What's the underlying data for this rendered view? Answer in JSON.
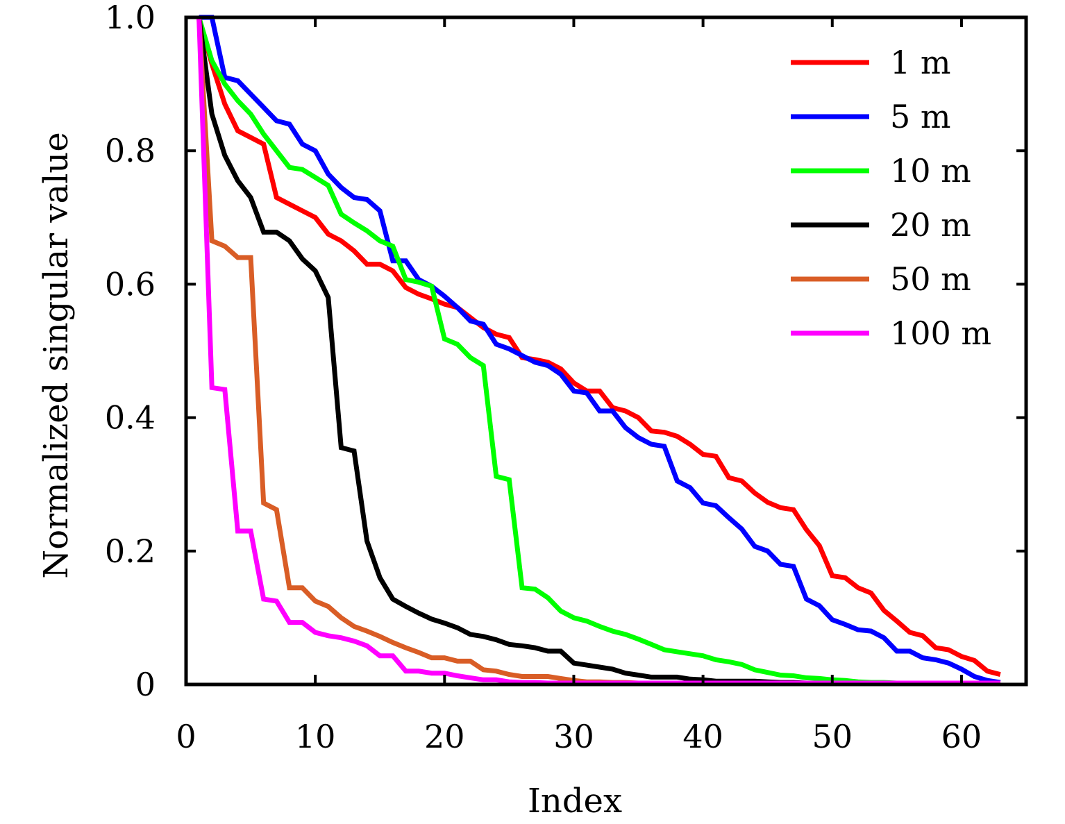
{
  "chart_data": {
    "type": "line",
    "title": "",
    "xlabel": "Index",
    "ylabel": "Normalized singular value",
    "xlim": [
      0,
      65
    ],
    "ylim": [
      0,
      1.0
    ],
    "xticks": [
      0,
      10,
      20,
      30,
      40,
      50,
      60
    ],
    "xtick_labels": [
      "0",
      "10",
      "20",
      "30",
      "40",
      "50",
      "60"
    ],
    "yticks": [
      0,
      0.2,
      0.4,
      0.6,
      0.8,
      1.0
    ],
    "ytick_labels": [
      "0",
      "0.2",
      "0.4",
      "0.6",
      "0.8",
      "1.0"
    ],
    "grid": false,
    "legend_position": "top-right",
    "x": [
      1,
      2,
      3,
      4,
      5,
      6,
      7,
      8,
      9,
      10,
      11,
      12,
      13,
      14,
      15,
      16,
      17,
      18,
      19,
      20,
      21,
      22,
      23,
      24,
      25,
      26,
      27,
      28,
      29,
      30,
      31,
      32,
      33,
      34,
      35,
      36,
      37,
      38,
      39,
      40,
      41,
      42,
      43,
      44,
      45,
      46,
      47,
      48,
      49,
      50,
      51,
      52,
      53,
      54,
      55,
      56,
      57,
      58,
      59,
      60,
      61,
      62,
      63
    ],
    "series": [
      {
        "name": "1 m",
        "color": "#ff0000",
        "values": [
          1.0,
          0.93,
          0.87,
          0.83,
          0.82,
          0.81,
          0.73,
          0.72,
          0.71,
          0.7,
          0.675,
          0.665,
          0.65,
          0.63,
          0.63,
          0.62,
          0.595,
          0.585,
          0.578,
          0.57,
          0.565,
          0.55,
          0.535,
          0.525,
          0.52,
          0.49,
          0.487,
          0.483,
          0.473,
          0.452,
          0.44,
          0.44,
          0.415,
          0.41,
          0.4,
          0.38,
          0.378,
          0.372,
          0.36,
          0.345,
          0.342,
          0.31,
          0.305,
          0.287,
          0.273,
          0.265,
          0.262,
          0.232,
          0.208,
          0.163,
          0.16,
          0.145,
          0.137,
          0.111,
          0.095,
          0.078,
          0.073,
          0.055,
          0.052,
          0.042,
          0.036,
          0.02,
          0.015
        ]
      },
      {
        "name": "5 m",
        "color": "#0000ff",
        "values": [
          1.0,
          1.0,
          0.91,
          0.905,
          0.885,
          0.865,
          0.845,
          0.84,
          0.81,
          0.8,
          0.765,
          0.745,
          0.73,
          0.727,
          0.71,
          0.635,
          0.635,
          0.607,
          0.597,
          0.582,
          0.565,
          0.545,
          0.54,
          0.51,
          0.503,
          0.493,
          0.483,
          0.478,
          0.465,
          0.44,
          0.437,
          0.41,
          0.41,
          0.385,
          0.37,
          0.36,
          0.357,
          0.305,
          0.295,
          0.272,
          0.268,
          0.25,
          0.233,
          0.207,
          0.2,
          0.18,
          0.177,
          0.128,
          0.118,
          0.097,
          0.09,
          0.082,
          0.08,
          0.07,
          0.05,
          0.05,
          0.04,
          0.037,
          0.032,
          0.023,
          0.012,
          0.006,
          0.003
        ]
      },
      {
        "name": "10 m",
        "color": "#00ff00",
        "values": [
          1.0,
          0.935,
          0.9,
          0.875,
          0.855,
          0.825,
          0.8,
          0.775,
          0.772,
          0.76,
          0.748,
          0.705,
          0.692,
          0.68,
          0.665,
          0.657,
          0.607,
          0.603,
          0.597,
          0.518,
          0.51,
          0.49,
          0.478,
          0.312,
          0.307,
          0.145,
          0.143,
          0.13,
          0.11,
          0.1,
          0.095,
          0.087,
          0.08,
          0.075,
          0.068,
          0.06,
          0.052,
          0.049,
          0.046,
          0.043,
          0.037,
          0.034,
          0.03,
          0.022,
          0.018,
          0.014,
          0.013,
          0.01,
          0.009,
          0.007,
          0.006,
          0.004,
          0.003,
          0.003,
          0.002,
          0.002,
          0.002,
          0.001,
          0.001,
          0.001,
          0.001,
          0.001,
          0.001
        ]
      },
      {
        "name": "20 m",
        "color": "#000000",
        "values": [
          1.0,
          0.855,
          0.793,
          0.755,
          0.73,
          0.678,
          0.678,
          0.665,
          0.638,
          0.62,
          0.58,
          0.355,
          0.35,
          0.215,
          0.16,
          0.128,
          0.117,
          0.107,
          0.098,
          0.092,
          0.085,
          0.075,
          0.072,
          0.067,
          0.06,
          0.058,
          0.055,
          0.05,
          0.05,
          0.032,
          0.029,
          0.026,
          0.023,
          0.017,
          0.014,
          0.011,
          0.011,
          0.011,
          0.008,
          0.007,
          0.005,
          0.005,
          0.005,
          0.005,
          0.004,
          0.003,
          0.003,
          0.002,
          0.002,
          0.002,
          0.002,
          0.002,
          0.001,
          0.001,
          0.001,
          0.001,
          0.001,
          0.001,
          0.001,
          0.001,
          0.001,
          0.001,
          0.001
        ]
      },
      {
        "name": "50 m",
        "color": "#d95d26",
        "values": [
          1.0,
          0.665,
          0.657,
          0.64,
          0.64,
          0.272,
          0.262,
          0.145,
          0.145,
          0.125,
          0.117,
          0.1,
          0.087,
          0.08,
          0.072,
          0.063,
          0.055,
          0.048,
          0.04,
          0.04,
          0.035,
          0.035,
          0.022,
          0.02,
          0.015,
          0.012,
          0.012,
          0.012,
          0.009,
          0.006,
          0.004,
          0.004,
          0.003,
          0.003,
          0.002,
          0.002,
          0.002,
          0.002,
          0.001,
          0.001,
          0.001,
          0.001,
          0.001,
          0.001,
          0.001,
          0.001,
          0.001,
          0.001,
          0.001,
          0.001,
          0.001,
          0.001,
          0.001,
          0.001,
          0.001,
          0.001,
          0.001,
          0.001,
          0.001,
          0.001,
          0.001,
          0.001,
          0.001
        ]
      },
      {
        "name": "100 m",
        "color": "#ff00ff",
        "values": [
          1.0,
          0.445,
          0.442,
          0.23,
          0.23,
          0.128,
          0.125,
          0.093,
          0.093,
          0.078,
          0.073,
          0.07,
          0.065,
          0.058,
          0.043,
          0.043,
          0.02,
          0.02,
          0.017,
          0.017,
          0.013,
          0.01,
          0.007,
          0.007,
          0.004,
          0.003,
          0.003,
          0.002,
          0.001,
          0.001,
          0.001,
          0.001,
          0.001,
          0.001,
          0.001,
          0.001,
          0.001,
          0.001,
          0.001,
          0.001,
          0.001,
          0.001,
          0.001,
          0.001,
          0.001,
          0.001,
          0.001,
          0.001,
          0.001,
          0.001,
          0.001,
          0.001,
          0.001,
          0.001,
          0.001,
          0.001,
          0.001,
          0.001,
          0.001,
          0.001,
          0.001,
          0.001,
          0.001
        ]
      }
    ]
  }
}
